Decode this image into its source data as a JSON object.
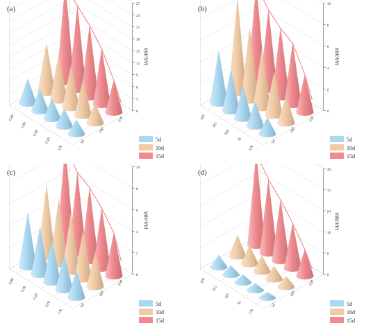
{
  "chart_data": [
    {
      "type": "3d-cone",
      "panel_label": "(a)",
      "categories": [
        "CK",
        "G10",
        "G20",
        "G30",
        "G40"
      ],
      "time_labels": [
        "5d",
        "10d",
        "15d"
      ],
      "zlabel": "IAA/ABA",
      "z_ticks": [
        "0",
        "3",
        "6",
        "9",
        "12",
        "15",
        "18",
        "21",
        "24",
        "27"
      ],
      "zlim": [
        0,
        27
      ],
      "legend_position": "bottom-right",
      "series": [
        {
          "name": "5d",
          "color": "#a9d8f2",
          "values": [
            3.5,
            4.3,
            5.0,
            5.6,
            6.2
          ]
        },
        {
          "name": "10d",
          "color": "#f2cba5",
          "values": [
            5.0,
            9.0,
            10.4,
            11.3,
            12.3
          ]
        },
        {
          "name": "15d",
          "color": "#f08a8e",
          "values": [
            8.0,
            14.0,
            18.0,
            21.0,
            24.5
          ]
        }
      ]
    },
    {
      "type": "3d-cone",
      "panel_label": "(b)",
      "categories": [
        "CK",
        "J5",
        "J10",
        "J15",
        "J20"
      ],
      "time_labels": [
        "5d",
        "10d",
        "15d"
      ],
      "zlabel": "IAA/ABA",
      "z_ticks": [
        "0",
        "2",
        "4",
        "6",
        "8",
        "10"
      ],
      "zlim": [
        0,
        10
      ],
      "legend_position": "bottom-right",
      "series": [
        {
          "name": "5d",
          "color": "#a9d8f2",
          "values": [
            1.5,
            2.3,
            3.0,
            3.8,
            4.9
          ]
        },
        {
          "name": "10d",
          "color": "#f2cba5",
          "values": [
            2.5,
            4.0,
            5.5,
            6.7,
            8.8
          ]
        },
        {
          "name": "15d",
          "color": "#f08a8e",
          "values": [
            3.5,
            5.7,
            6.4,
            7.4,
            9.0
          ]
        }
      ]
    },
    {
      "type": "3d-cone",
      "panel_label": "(c)",
      "categories": [
        "CK",
        "G10",
        "G20",
        "G30",
        "G40"
      ],
      "time_labels": [
        "5d",
        "10d",
        "15d"
      ],
      "zlabel": "IAA/ABA",
      "z_ticks": [
        "0",
        "2",
        "4",
        "6",
        "8",
        "10"
      ],
      "zlim": [
        0,
        10
      ],
      "legend_position": "bottom-right",
      "series": [
        {
          "name": "5d",
          "color": "#a9d8f2",
          "values": [
            2.5,
            3.3,
            3.9,
            4.4,
            5.0
          ]
        },
        {
          "name": "10d",
          "color": "#f2cba5",
          "values": [
            3.2,
            4.5,
            5.4,
            6.0,
            6.6
          ]
        },
        {
          "name": "15d",
          "color": "#f08a8e",
          "values": [
            4.0,
            5.6,
            6.8,
            7.5,
            9.2
          ]
        }
      ]
    },
    {
      "type": "3d-cone",
      "panel_label": "(d)",
      "categories": [
        "CK",
        "J5",
        "J10",
        "J15",
        "J20"
      ],
      "time_labels": [
        "5d",
        "10d",
        "15d"
      ],
      "zlabel": "IAA/ABA",
      "z_ticks": [
        "0",
        "8",
        "16",
        "24",
        "32",
        "40"
      ],
      "zlim": [
        0,
        40
      ],
      "legend_position": "bottom-right",
      "series": [
        {
          "name": "5d",
          "color": "#a9d8f2",
          "values": [
            2.0,
            2.5,
            3.0,
            3.5,
            4.5
          ]
        },
        {
          "name": "10d",
          "color": "#f2cba5",
          "values": [
            4.0,
            5.0,
            6.0,
            7.0,
            8.0
          ]
        },
        {
          "name": "15d",
          "color": "#f08a8e",
          "values": [
            10.0,
            17.0,
            23.0,
            28.0,
            35.0
          ]
        }
      ]
    }
  ]
}
